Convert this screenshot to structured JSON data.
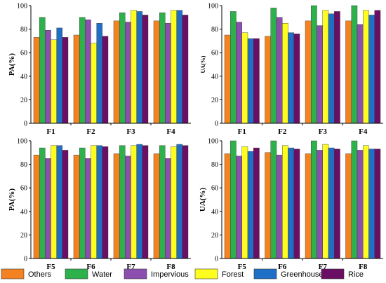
{
  "colors": {
    "Others": "#f58220",
    "Water": "#2db14b",
    "Impervious": "#8c4fb0",
    "Forest": "#fdfd1f",
    "Greenhouse": "#1f6fc7",
    "Rice": "#6a0f63"
  },
  "legend": [
    "Others",
    "Water",
    "Impervious",
    "Forest",
    "Greenhouse",
    "Rice"
  ],
  "chart_data": [
    {
      "type": "bar",
      "ylabel": "PA(%)",
      "ylim": [
        0,
        100
      ],
      "yticks": [
        "0",
        "20",
        "40",
        "60",
        "80",
        "100"
      ],
      "categories": [
        "F1",
        "F2",
        "F3",
        "F4"
      ],
      "series": [
        {
          "name": "Others",
          "values": [
            73,
            75,
            87,
            87
          ]
        },
        {
          "name": "Water",
          "values": [
            90,
            90,
            94,
            94
          ]
        },
        {
          "name": "Impervious",
          "values": [
            79,
            88,
            86,
            85
          ]
        },
        {
          "name": "Forest",
          "values": [
            71,
            68,
            96,
            96
          ]
        },
        {
          "name": "Greenhouse",
          "values": [
            81,
            85,
            95,
            96
          ]
        },
        {
          "name": "Rice",
          "values": [
            73,
            74,
            92,
            92
          ]
        }
      ]
    },
    {
      "type": "bar",
      "ylabel": "UA(%)",
      "ylim": [
        0,
        100
      ],
      "yticks": [
        "0",
        "20",
        "40",
        "60",
        "80",
        "100"
      ],
      "categories": [
        "F1",
        "F2",
        "F3",
        "F4"
      ],
      "series": [
        {
          "name": "Others",
          "values": [
            75,
            74,
            87,
            87
          ]
        },
        {
          "name": "Water",
          "values": [
            95,
            98,
            100,
            100
          ]
        },
        {
          "name": "Impervious",
          "values": [
            86,
            90,
            83,
            84
          ]
        },
        {
          "name": "Forest",
          "values": [
            77,
            85,
            96,
            96
          ]
        },
        {
          "name": "Greenhouse",
          "values": [
            72,
            77,
            93,
            92
          ]
        },
        {
          "name": "Rice",
          "values": [
            72,
            76,
            95,
            96
          ]
        }
      ]
    },
    {
      "type": "bar",
      "ylabel": "PA(%)",
      "ylim": [
        0,
        100
      ],
      "yticks": [
        "0",
        "20",
        "40",
        "60",
        "80",
        "100"
      ],
      "categories": [
        "F5",
        "F6",
        "F7",
        "F8"
      ],
      "series": [
        {
          "name": "Others",
          "values": [
            88,
            88,
            89,
            89
          ]
        },
        {
          "name": "Water",
          "values": [
            94,
            94,
            96,
            96
          ]
        },
        {
          "name": "Impervious",
          "values": [
            85,
            85,
            87,
            85
          ]
        },
        {
          "name": "Forest",
          "values": [
            96,
            96,
            96,
            95
          ]
        },
        {
          "name": "Greenhouse",
          "values": [
            96,
            96,
            97,
            97
          ]
        },
        {
          "name": "Rice",
          "values": [
            92,
            95,
            96,
            96
          ]
        }
      ]
    },
    {
      "type": "bar",
      "ylabel": "UA(%)",
      "ylim": [
        0,
        100
      ],
      "yticks": [
        "0",
        "20",
        "40",
        "60",
        "80",
        "100"
      ],
      "categories": [
        "F5",
        "F6",
        "F7",
        "F8"
      ],
      "series": [
        {
          "name": "Others",
          "values": [
            89,
            90,
            89,
            89
          ]
        },
        {
          "name": "Water",
          "values": [
            100,
            100,
            100,
            100
          ]
        },
        {
          "name": "Impervious",
          "values": [
            87,
            88,
            92,
            92
          ]
        },
        {
          "name": "Forest",
          "values": [
            95,
            96,
            97,
            96
          ]
        },
        {
          "name": "Greenhouse",
          "values": [
            91,
            94,
            94,
            93
          ]
        },
        {
          "name": "Rice",
          "values": [
            94,
            93,
            93,
            93
          ]
        }
      ]
    }
  ]
}
